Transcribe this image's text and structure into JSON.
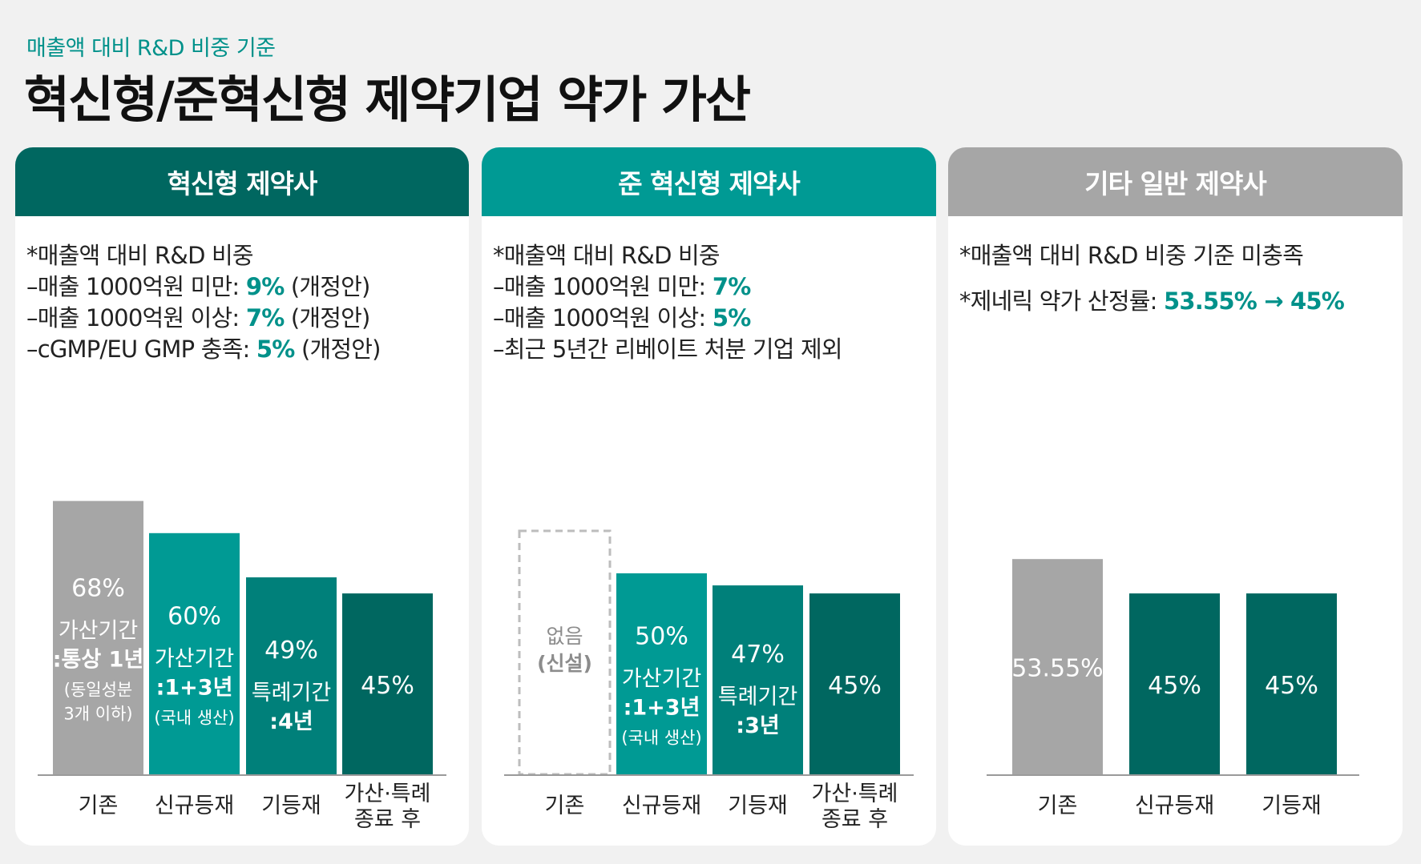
{
  "header": {
    "subtitle": "매출액 대비 R&D 비중 기준",
    "title": "혁신형/준혁신형 제약기업 약가 가산"
  },
  "colors": {
    "accent": "#00918a",
    "dark_teal": "#006760",
    "teal": "#009a94",
    "gray": "#a6a6a6",
    "background": "#f1f1f1"
  },
  "panels": [
    {
      "header": "혁신형 제약사",
      "criteria": [
        {
          "text": "*매출액 대비 R&D 비중"
        },
        {
          "text": "–매출 1000억원 미만: ",
          "value": "9%",
          "note": " (개정안)"
        },
        {
          "text": "–매출 1000억원 이상: ",
          "value": "7%",
          "note": " (개정안)"
        },
        {
          "text": "–cGMP/EU GMP 충족: ",
          "value": "5%",
          "note": " (개정안)"
        }
      ]
    },
    {
      "header": "준 혁신형 제약사",
      "criteria": [
        {
          "text": "*매출액 대비 R&D 비중"
        },
        {
          "text": "–매출 1000억원 미만: ",
          "value": "7%"
        },
        {
          "text": "–매출 1000억원 이상: ",
          "value": "5%"
        },
        {
          "text": "–최근 5년간 리베이트 처분 기업 제외"
        }
      ]
    },
    {
      "header": "기타 일반 제약사",
      "criteria": [
        {
          "text": "*매출액 대비 R&D 비중 기준 미충족"
        },
        {
          "text": "*제네릭 약가 산정률: ",
          "value": "53.55% → 45%",
          "gap": true
        }
      ]
    }
  ],
  "chart_data": [
    {
      "type": "bar",
      "title": "혁신형 제약사",
      "categories": [
        [
          "기존"
        ],
        [
          "신규등재"
        ],
        [
          "기등재"
        ],
        [
          "가산·특례",
          "종료 후"
        ]
      ],
      "values": [
        68,
        60,
        49,
        45
      ],
      "value_labels": [
        "68%",
        "60%",
        "49%",
        "45%"
      ],
      "annotations": [
        [
          {
            "t": "가산기간",
            "b": false
          },
          {
            "t": ":통상 1년",
            "b": true
          },
          {
            "t": "(동일성분",
            "b": false,
            "s": true
          },
          {
            "t": "3개 이하)",
            "b": false,
            "s": true
          }
        ],
        [
          {
            "t": "가산기간",
            "b": false
          },
          {
            "t": ":1+3년",
            "b": true
          },
          {
            "t": "(국내 생산)",
            "b": false,
            "s": true
          }
        ],
        [
          {
            "t": "특례기간",
            "b": false
          },
          {
            "t": ":4년",
            "b": true
          }
        ],
        []
      ],
      "colors": [
        "#a6a6a6",
        "#009a94",
        "#00807a",
        "#006760"
      ],
      "ylim": [
        0,
        70
      ]
    },
    {
      "type": "bar",
      "title": "준 혁신형 제약사",
      "categories": [
        [
          "기존"
        ],
        [
          "신규등재"
        ],
        [
          "기등재"
        ],
        [
          "가산·특례",
          "종료 후"
        ]
      ],
      "values": [
        null,
        50,
        47,
        45
      ],
      "value_labels": [
        "",
        "50%",
        "47%",
        "45%"
      ],
      "placeholder": [
        "없음",
        "(신설)"
      ],
      "annotations": [
        [],
        [
          {
            "t": "가산기간",
            "b": false
          },
          {
            "t": ":1+3년",
            "b": true
          },
          {
            "t": "(국내 생산)",
            "b": false,
            "s": true
          }
        ],
        [
          {
            "t": "특례기간",
            "b": false
          },
          {
            "t": ":3년",
            "b": true
          }
        ],
        []
      ],
      "colors": [
        "#ffffff",
        "#009a94",
        "#00807a",
        "#006760"
      ],
      "ylim": [
        0,
        70
      ]
    },
    {
      "type": "bar",
      "title": "기타 일반 제약사",
      "categories": [
        [
          "기존"
        ],
        [
          "신규등재"
        ],
        [
          "기등재"
        ]
      ],
      "values": [
        53.55,
        45,
        45
      ],
      "value_labels": [
        "53.55%",
        "45%",
        "45%"
      ],
      "annotations": [
        [],
        [],
        []
      ],
      "colors": [
        "#a6a6a6",
        "#006760",
        "#006760"
      ],
      "ylim": [
        0,
        70
      ]
    }
  ]
}
